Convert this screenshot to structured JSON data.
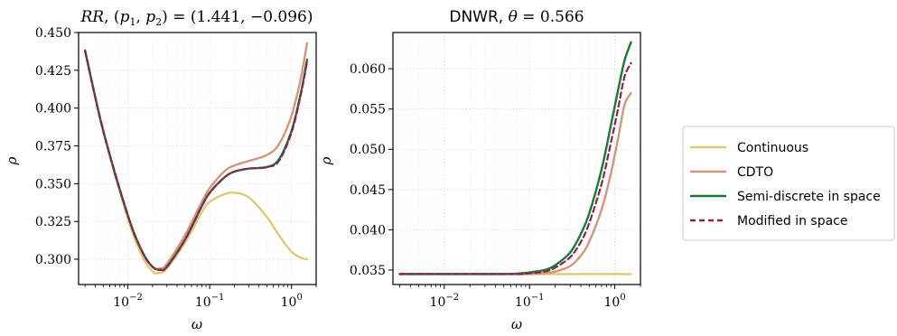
{
  "chart_data": [
    {
      "type": "line",
      "title": "RR, (p1, p2) = (1.441, −0.096)",
      "xlabel": "ω",
      "ylabel": "ρ",
      "xscale": "log",
      "xlim": [
        0.0025,
        2.0
      ],
      "ylim": [
        0.2833,
        0.45
      ],
      "xticks": [
        0.01,
        0.1,
        1
      ],
      "xtick_labels": [
        "10−2",
        "10−1",
        "100"
      ],
      "yticks": [
        0.3,
        0.325,
        0.35,
        0.375,
        0.4,
        0.425,
        0.45
      ],
      "ytick_labels": [
        "0.300",
        "0.325",
        "0.350",
        "0.375",
        "0.400",
        "0.425",
        "0.450"
      ],
      "grid": true,
      "x": [
        0.003,
        0.005,
        0.01,
        0.015,
        0.02,
        0.025,
        0.03,
        0.05,
        0.08,
        0.1,
        0.15,
        0.2,
        0.3,
        0.5,
        0.7,
        1.0,
        1.3,
        1.55
      ],
      "series": [
        {
          "name": "Continuous",
          "color": "#ddc97a",
          "dash": false,
          "values": [
            0.438,
            0.385,
            0.327,
            0.302,
            0.292,
            0.291,
            0.294,
            0.311,
            0.331,
            0.338,
            0.343,
            0.344,
            0.341,
            0.328,
            0.316,
            0.305,
            0.301,
            0.3
          ]
        },
        {
          "name": "CDTO",
          "color": "#d4967a",
          "dash": false,
          "values": [
            0.438,
            0.385,
            0.329,
            0.305,
            0.295,
            0.294,
            0.297,
            0.316,
            0.338,
            0.347,
            0.358,
            0.362,
            0.365,
            0.369,
            0.376,
            0.395,
            0.42,
            0.443
          ]
        },
        {
          "name": "Semi-discrete in space",
          "color": "#1a7a35",
          "dash": false,
          "values": [
            0.438,
            0.385,
            0.329,
            0.305,
            0.295,
            0.293,
            0.295,
            0.313,
            0.335,
            0.344,
            0.354,
            0.358,
            0.36,
            0.361,
            0.366,
            0.385,
            0.41,
            0.432
          ]
        },
        {
          "name": "Modified in space",
          "color": "#8a2252",
          "dash": true,
          "values": [
            0.438,
            0.385,
            0.329,
            0.305,
            0.295,
            0.293,
            0.295,
            0.313,
            0.335,
            0.344,
            0.354,
            0.358,
            0.36,
            0.361,
            0.365,
            0.384,
            0.409,
            0.431
          ]
        }
      ]
    },
    {
      "type": "line",
      "title": "DNWR, θ = 0.566",
      "xlabel": "ω",
      "ylabel": "ρ",
      "xscale": "log",
      "xlim": [
        0.0025,
        2.0
      ],
      "ylim": [
        0.0332,
        0.0645
      ],
      "xticks": [
        0.01,
        0.1,
        1
      ],
      "xtick_labels": [
        "10−2",
        "10−1",
        "100"
      ],
      "yticks": [
        0.035,
        0.04,
        0.045,
        0.05,
        0.055,
        0.06
      ],
      "ytick_labels": [
        "0.035",
        "0.040",
        "0.045",
        "0.050",
        "0.055",
        "0.060"
      ],
      "grid": true,
      "x": [
        0.003,
        0.01,
        0.03,
        0.05,
        0.08,
        0.1,
        0.15,
        0.2,
        0.3,
        0.4,
        0.5,
        0.7,
        0.9,
        1.1,
        1.3,
        1.55
      ],
      "series": [
        {
          "name": "Continuous",
          "color": "#ddc97a",
          "dash": false,
          "values": [
            0.0345,
            0.0345,
            0.0345,
            0.0345,
            0.0345,
            0.0345,
            0.0345,
            0.0345,
            0.0345,
            0.0345,
            0.0345,
            0.0345,
            0.0345,
            0.0345,
            0.0345,
            0.0345
          ]
        },
        {
          "name": "CDTO",
          "color": "#d4967a",
          "dash": false,
          "values": [
            0.0345,
            0.0345,
            0.0345,
            0.0345,
            0.0345,
            0.0345,
            0.0346,
            0.0348,
            0.0355,
            0.0368,
            0.0385,
            0.0425,
            0.047,
            0.0515,
            0.0555,
            0.057
          ]
        },
        {
          "name": "Semi-discrete in space",
          "color": "#1a7a35",
          "dash": false,
          "values": [
            0.0345,
            0.0345,
            0.0345,
            0.0345,
            0.0346,
            0.0347,
            0.035,
            0.0356,
            0.0372,
            0.0395,
            0.042,
            0.0475,
            0.053,
            0.0575,
            0.061,
            0.0633
          ]
        },
        {
          "name": "Modified in space",
          "color": "#8a2252",
          "dash": true,
          "values": [
            0.0345,
            0.0345,
            0.0345,
            0.0345,
            0.0345,
            0.0346,
            0.0348,
            0.0353,
            0.0366,
            0.0385,
            0.0408,
            0.0457,
            0.0508,
            0.0552,
            0.059,
            0.0607
          ]
        }
      ]
    }
  ],
  "legend": {
    "placement": "right",
    "items": [
      {
        "label": "Continuous",
        "color": "#ddc97a",
        "dash": false
      },
      {
        "label": "CDTO",
        "color": "#d4967a",
        "dash": false
      },
      {
        "label": "Semi-discrete in space",
        "color": "#1a7a35",
        "dash": false
      },
      {
        "label": "Modified in space",
        "color": "#8a2252",
        "dash": true
      }
    ]
  }
}
